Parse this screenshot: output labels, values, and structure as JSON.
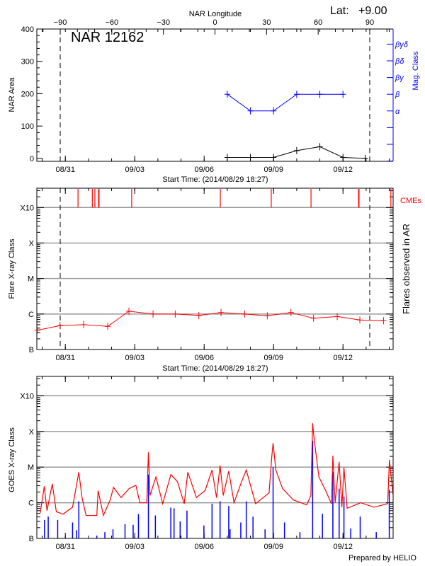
{
  "header": {
    "lat_label": "Lat:",
    "lat_value": "+9.00"
  },
  "footer": {
    "credit": "Prepared by HELIO"
  },
  "colors": {
    "area": "#000000",
    "mag_class": "#0000ff",
    "flares": "#ff0000",
    "cmes": "#ff0000",
    "goes_long": "#ff0000",
    "goes_short": "#0000ff",
    "grid": "#999999"
  },
  "chart_data": [
    {
      "type": "line",
      "title": "NAR 12162",
      "top_xlabel": "NAR Longitude",
      "top_xticks": [
        -90,
        -60,
        -30,
        0,
        30,
        60,
        90
      ],
      "top_xlim": [
        -103.6,
        103.6
      ],
      "limb_longitudes": [
        -90,
        90
      ],
      "xlabel": "Start Time: (2014/08/29 18:27)",
      "xlim": [
        "2014-08-29 18:27",
        "2014-09-14 04:00"
      ],
      "xticks": [
        {
          "label": "08/31",
          "time": "2014-08-31 00:00"
        },
        {
          "label": "09/03",
          "time": "2014-09-03 00:00"
        },
        {
          "label": "09/06",
          "time": "2014-09-06 00:00"
        },
        {
          "label": "09/09",
          "time": "2014-09-09 00:00"
        },
        {
          "label": "09/12",
          "time": "2014-09-12 00:00"
        }
      ],
      "ylabel": "NAR Area",
      "yticks": [
        0,
        100,
        200,
        300,
        400
      ],
      "ylim": [
        -9,
        400
      ],
      "y2label": "Mag. Class",
      "y2ticks": [
        "",
        "",
        "α",
        "β",
        "βγ",
        "βδ",
        "βγδ"
      ],
      "area": {
        "times": [
          "2014-09-07 00:00",
          "2014-09-08 00:00",
          "2014-09-09 00:00",
          "2014-09-10 00:00",
          "2014-09-11 00:00",
          "2014-09-12 00:00",
          "2014-09-12 23:00"
        ],
        "values": [
          3,
          3,
          3,
          24,
          36,
          3,
          0
        ]
      },
      "mag_class": {
        "times": [
          "2014-09-07 00:00",
          "2014-09-08 00:00",
          "2014-09-09 00:00",
          "2014-09-10 00:00",
          "2014-09-11 00:00",
          "2014-09-12 00:00"
        ],
        "values": [
          "β",
          "α",
          "α",
          "β",
          "β",
          "β"
        ]
      }
    },
    {
      "type": "line",
      "xlabel": "Start Time: (2014/08/29 18:27)",
      "ylabel": "Flare X-ray Class",
      "y2label": "Flares observed in AR",
      "yticks": [
        "B",
        "C",
        "M",
        "X",
        "X10"
      ],
      "ylim": [
        "B1",
        "X35"
      ],
      "grid": true,
      "flares": {
        "times": [
          "2014-08-29 19:00",
          "2014-08-30 18:30",
          "2014-08-31 19:00",
          "2014-09-01 20:00",
          "2014-09-02 18:00",
          "2014-09-03 19:00",
          "2014-09-04 18:00",
          "2014-09-05 18:30",
          "2014-09-06 17:30",
          "2014-09-07 18:00",
          "2014-09-08 17:30",
          "2014-09-09 18:00",
          "2014-09-10 17:30",
          "2014-09-11 18:00",
          "2014-09-12 17:30",
          "2014-09-13 18:00"
        ],
        "classes": [
          "B3.5",
          "B4.7",
          "B5.0",
          "B4.5",
          "C1.2",
          "C1.0",
          "C1.0",
          "B9.1",
          "C1.1",
          "C1.0",
          "B8.9",
          "C1.1",
          "B7.6",
          "B8.5",
          "B6.8",
          "B6.5"
        ]
      },
      "cmes": {
        "label": "CMEs",
        "times": [
          "2014-08-31 13:10",
          "2014-09-01 04:00",
          "2014-09-01 06:40",
          "2014-09-01 10:30",
          "2014-09-01 11:00",
          "2014-09-02 20:50",
          "2014-09-06 16:45",
          "2014-09-08 21:35",
          "2014-09-10 14:50",
          "2014-09-12 16:10",
          "2014-09-12 16:40",
          "2014-09-14 01:40"
        ]
      }
    },
    {
      "type": "line",
      "ylabel": "GOES X-ray Class",
      "yticks": [
        "B",
        "C",
        "M",
        "X",
        "X10"
      ],
      "ylim": [
        "B1",
        "X35"
      ],
      "grid": true,
      "goes_long": {
        "times": [
          "2014-08-29 22:00",
          "2014-08-30 02:10",
          "2014-08-30 05:00",
          "2014-08-30 10:30",
          "2014-08-30 14:40",
          "2014-08-30 21:40",
          "2014-08-31 07:30",
          "2014-08-31 14:00",
          "2014-08-31 17:20",
          "2014-08-31 21:30",
          "2014-09-01 08:40",
          "2014-09-01 10:00",
          "2014-09-01 15:30",
          "2014-09-01 22:30",
          "2014-09-02 02:00",
          "2014-09-02 09:50",
          "2014-09-02 18:10",
          "2014-09-03 01:10",
          "2014-09-03 05:20",
          "2014-09-03 12:30",
          "2014-09-03 14:10",
          "2014-09-03 15:50",
          "2014-09-03 22:00",
          "2014-09-04 05:00",
          "2014-09-04 13:30",
          "2014-09-04 20:20",
          "2014-09-05 03:20",
          "2014-09-05 07:00",
          "2014-09-05 16:00",
          "2014-09-06 01:00",
          "2014-09-06 08:10",
          "2014-09-06 12:50",
          "2014-09-06 16:30",
          "2014-09-06 19:50",
          "2014-09-07 01:30",
          "2014-09-07 07:00",
          "2014-09-07 14:00",
          "2014-09-07 19:40",
          "2014-09-08 05:20",
          "2014-09-08 19:20",
          "2014-09-08 22:10",
          "2014-09-08 23:30",
          "2014-09-09 02:20",
          "2014-09-09 09:20",
          "2014-09-09 20:30",
          "2014-09-10 10:20",
          "2014-09-10 14:40",
          "2014-09-10 16:30",
          "2014-09-10 18:10",
          "2014-09-10 23:00",
          "2014-09-11 06:00",
          "2014-09-11 12:00",
          "2014-09-11 13:30",
          "2014-09-11 15:50",
          "2014-09-11 20:00",
          "2014-09-11 22:50",
          "2014-09-12 01:00",
          "2014-09-12 04:20",
          "2014-09-12 18:20",
          "2014-09-13 08:10",
          "2014-09-13 22:20",
          "2014-09-14 00:10",
          "2014-09-14 03:50"
        ],
        "classes": [
          "B5.2",
          "C2.9",
          "B6.0",
          "C3.4",
          "B5.6",
          "B4.8",
          "B7.5",
          "C7.2",
          "C1.4",
          "B4.4",
          "B4.4",
          "C2.2",
          "B4.4",
          "C1.2",
          "C2.7",
          "C1.4",
          "C2.5",
          "C3.1",
          "C1.0",
          "C1.0",
          "M2.6",
          "C1.6",
          "C5.3",
          "B9.4",
          "C6.2",
          "C3.9",
          "B9.4",
          "C7.2",
          "C1.4",
          "C2.2",
          "C8.3",
          "C1.4",
          "M1.1",
          "C1.6",
          "C7.7",
          "C1.0",
          "C3.4",
          "C8.3",
          "B9.4",
          "C1.9",
          "M2.0",
          "M4.7",
          "C8.3",
          "C2.5",
          "C1.2",
          "B8.7",
          "C1.6",
          "X1.7",
          "M5.9",
          "C5.3",
          "C2.2",
          "B9.4",
          "M2.1",
          "C1.0",
          "M1.4",
          "B7.5",
          "C9.7",
          "B7.0",
          "C1.0",
          "B7.5",
          "B9.4",
          "M1.6",
          "C1.7"
        ]
      },
      "goes_short": {
        "times": [
          "2014-08-30 02:25",
          "2014-08-30 06:15",
          "2014-08-30 16:05",
          "2014-08-31 07:30",
          "2014-08-31 11:40",
          "2014-08-31 14:00",
          "2014-09-01 08:40",
          "2014-09-01 17:00",
          "2014-09-02 01:25",
          "2014-09-02 13:55",
          "2014-09-02 22:20",
          "2014-09-03 03:50",
          "2014-09-03 14:10",
          "2014-09-03 21:25",
          "2014-09-04 13:25",
          "2014-09-04 16:45",
          "2014-09-04 23:05",
          "2014-09-05 06:10",
          "2014-09-05 23:45",
          "2014-09-06 08:10",
          "2014-09-06 16:30",
          "2014-09-07 01:30",
          "2014-09-07 02:50",
          "2014-09-07 14:00",
          "2014-09-07 19:40",
          "2014-09-08 02:40",
          "2014-09-08 15:10",
          "2014-09-08 23:30",
          "2014-09-09 11:20",
          "2014-09-10 03:20",
          "2014-09-10 16:30",
          "2014-09-11 02:40",
          "2014-09-11 13:30",
          "2014-09-11 20:00",
          "2014-09-12 01:00",
          "2014-09-12 08:00",
          "2014-09-12 17:50",
          "2014-09-13 10:30",
          "2014-09-14 00:00"
        ],
        "classes": [
          "B3.3",
          "B4.1",
          "B3.3",
          "B2.8",
          "B1.7",
          "C1.1",
          "B1.2",
          "B1.5",
          "B1.8",
          "B2.5",
          "B2.4",
          "B4.8",
          "C6.2",
          "B4.4",
          "B7.3",
          "B7.0",
          "B3.0",
          "B6.0",
          "B2.3",
          "B9.4",
          "C1.1",
          "B8.1",
          "B1.8",
          "B2.8",
          "C1.1",
          "B4.1",
          "B1.8",
          "M1.0",
          "B2.8",
          "B1.5",
          "M5.5",
          "B4.9",
          "C7.2",
          "C2.5",
          "C1.5",
          "B1.9",
          "B4.1",
          "B1.5",
          "C2.3"
        ]
      }
    }
  ]
}
